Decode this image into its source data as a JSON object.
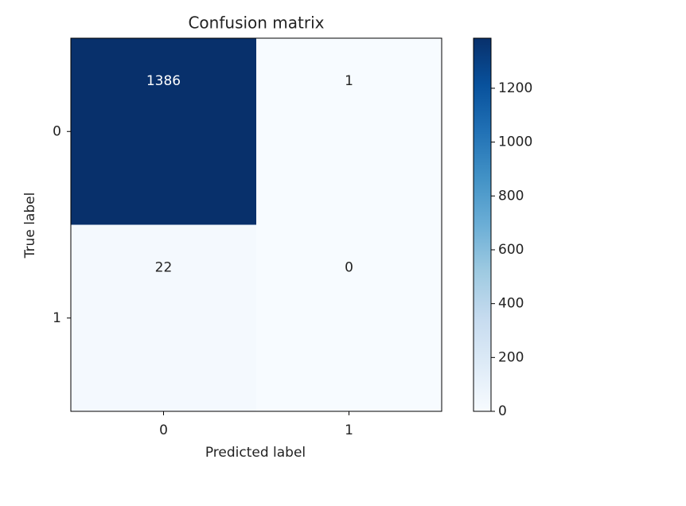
{
  "chart_data": {
    "type": "heatmap",
    "title": "Confusion matrix",
    "x_label": "Predicted label",
    "y_label": "True label",
    "x_categories": [
      "0",
      "1"
    ],
    "y_categories": [
      "0",
      "1"
    ],
    "values": [
      [
        1386,
        1
      ],
      [
        22,
        0
      ]
    ],
    "clim": [
      0,
      1386
    ],
    "cticks": [
      0,
      200,
      400,
      600,
      800,
      1000,
      1200
    ],
    "colorscale": [
      "#f7fbff",
      "#deebf7",
      "#c6dbef",
      "#9ecae1",
      "#6baed6",
      "#4292c6",
      "#2171b5",
      "#08519c",
      "#08306b"
    ]
  }
}
